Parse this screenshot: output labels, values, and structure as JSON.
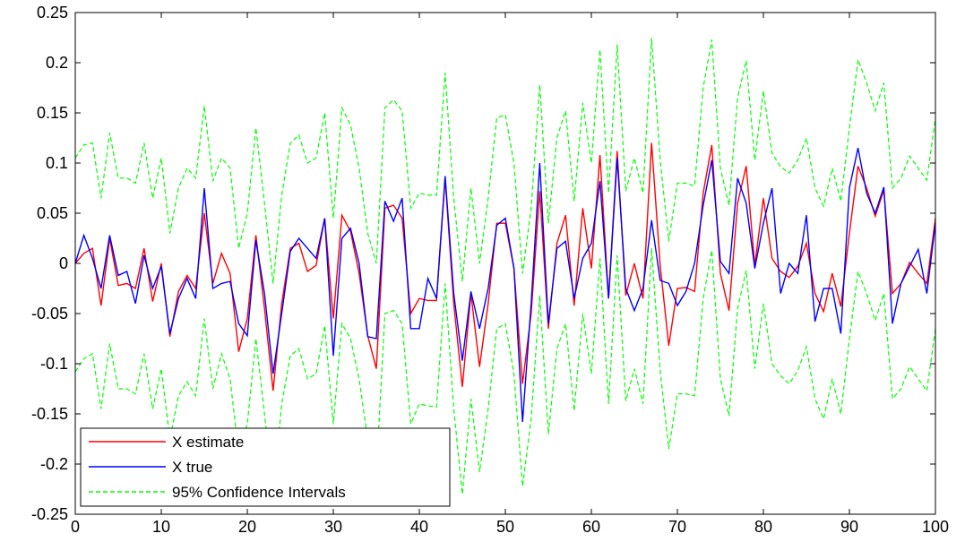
{
  "chart_data": {
    "type": "line",
    "title": "",
    "xlabel": "",
    "ylabel": "",
    "xlim": [
      0,
      100
    ],
    "ylim": [
      -0.25,
      0.25
    ],
    "x_ticks": [
      0,
      10,
      20,
      30,
      40,
      50,
      60,
      70,
      80,
      90,
      100
    ],
    "x_tick_labels": [
      "0",
      "10",
      "20",
      "30",
      "40",
      "50",
      "60",
      "70",
      "80",
      "90",
      "100"
    ],
    "y_ticks": [
      -0.25,
      -0.2,
      -0.15,
      -0.1,
      -0.05,
      0,
      0.05,
      0.1,
      0.15,
      0.2,
      0.25
    ],
    "y_tick_labels": [
      "-0.25",
      "-0.2",
      "-0.15",
      "-0.1",
      "-0.05",
      "0",
      "0.05",
      "0.1",
      "0.15",
      "0.2",
      "0.25"
    ],
    "grid": false,
    "legend_position": "bottom-left",
    "x": [
      0,
      1,
      2,
      3,
      4,
      5,
      6,
      7,
      8,
      9,
      10,
      11,
      12,
      13,
      14,
      15,
      16,
      17,
      18,
      19,
      20,
      21,
      22,
      23,
      24,
      25,
      26,
      27,
      28,
      29,
      30,
      31,
      32,
      33,
      34,
      35,
      36,
      37,
      38,
      39,
      40,
      41,
      42,
      43,
      44,
      45,
      46,
      47,
      48,
      49,
      50,
      51,
      52,
      53,
      54,
      55,
      56,
      57,
      58,
      59,
      60,
      61,
      62,
      63,
      64,
      65,
      66,
      67,
      68,
      69,
      70,
      71,
      72,
      73,
      74,
      75,
      76,
      77,
      78,
      79,
      80,
      81,
      82,
      83,
      84,
      85,
      86,
      87,
      88,
      89,
      90,
      91,
      92,
      93,
      94,
      95,
      96,
      97,
      98,
      99,
      100
    ],
    "series": [
      {
        "name": "X estimate",
        "color": "#ff0000",
        "style": "solid",
        "values": [
          0.0,
          0.01,
          0.015,
          -0.042,
          0.025,
          -0.022,
          -0.02,
          -0.025,
          0.015,
          -0.038,
          0.0,
          -0.073,
          -0.028,
          -0.012,
          -0.025,
          0.05,
          -0.02,
          0.01,
          -0.01,
          -0.088,
          -0.055,
          0.028,
          -0.045,
          -0.127,
          -0.04,
          0.015,
          0.02,
          -0.008,
          -0.002,
          0.045,
          -0.055,
          0.048,
          0.032,
          -0.01,
          -0.072,
          -0.105,
          0.055,
          0.058,
          0.045,
          -0.05,
          -0.035,
          -0.037,
          -0.037,
          0.085,
          -0.04,
          -0.123,
          -0.03,
          -0.103,
          -0.04,
          0.04,
          0.04,
          -0.005,
          -0.12,
          -0.05,
          0.072,
          -0.065,
          0.02,
          0.048,
          -0.042,
          0.055,
          -0.005,
          0.108,
          -0.035,
          0.112,
          -0.032,
          0.0,
          -0.035,
          0.12,
          -0.002,
          -0.082,
          -0.025,
          -0.024,
          -0.028,
          0.07,
          0.118,
          -0.01,
          -0.047,
          0.06,
          0.097,
          -0.002,
          0.065,
          0.005,
          -0.008,
          -0.014,
          -0.003,
          0.02,
          -0.03,
          -0.048,
          -0.01,
          -0.043,
          0.03,
          0.097,
          0.075,
          0.047,
          0.073,
          -0.03,
          -0.02,
          0.001,
          -0.01,
          -0.02,
          0.045
        ]
      },
      {
        "name": "X true",
        "color": "#0000ff",
        "style": "solid",
        "values": [
          0.0,
          0.028,
          0.005,
          -0.025,
          0.028,
          -0.012,
          -0.008,
          -0.04,
          0.008,
          -0.025,
          -0.003,
          -0.07,
          -0.035,
          -0.015,
          -0.035,
          0.075,
          -0.025,
          -0.02,
          -0.018,
          -0.06,
          -0.072,
          0.023,
          -0.03,
          -0.11,
          -0.05,
          0.012,
          0.025,
          0.015,
          0.005,
          0.045,
          -0.092,
          0.025,
          0.035,
          0.0,
          -0.073,
          -0.075,
          0.062,
          0.042,
          0.065,
          -0.065,
          -0.065,
          -0.015,
          -0.035,
          0.087,
          -0.03,
          -0.097,
          -0.028,
          -0.065,
          -0.025,
          0.038,
          0.045,
          -0.005,
          -0.158,
          -0.04,
          0.1,
          -0.06,
          0.015,
          0.022,
          -0.035,
          0.005,
          0.02,
          0.082,
          -0.035,
          0.105,
          -0.025,
          -0.047,
          -0.025,
          0.043,
          -0.017,
          -0.02,
          -0.042,
          -0.028,
          0.0,
          0.058,
          0.103,
          0.002,
          -0.01,
          0.085,
          0.06,
          -0.005,
          0.04,
          0.075,
          -0.03,
          0.0,
          -0.01,
          0.048,
          -0.058,
          -0.025,
          -0.025,
          -0.07,
          0.075,
          0.115,
          0.07,
          0.05,
          0.076,
          -0.06,
          -0.02,
          -0.003,
          0.014,
          -0.03,
          0.04
        ]
      },
      {
        "name": "95% Confidence Intervals",
        "color": "#00ff00",
        "style": "dashed",
        "upper": [
          0.105,
          0.118,
          0.12,
          0.065,
          0.13,
          0.085,
          0.085,
          0.08,
          0.12,
          0.065,
          0.105,
          0.03,
          0.075,
          0.095,
          0.085,
          0.157,
          0.082,
          0.105,
          0.095,
          0.015,
          0.05,
          0.135,
          0.06,
          -0.02,
          0.068,
          0.12,
          0.128,
          0.1,
          0.105,
          0.15,
          0.045,
          0.155,
          0.138,
          0.095,
          0.03,
          0.0,
          0.155,
          0.163,
          0.152,
          0.055,
          0.07,
          0.068,
          0.068,
          0.19,
          0.065,
          -0.018,
          0.075,
          0.0,
          0.065,
          0.145,
          0.148,
          0.1,
          -0.01,
          0.055,
          0.178,
          0.04,
          0.125,
          0.152,
          0.062,
          0.16,
          0.1,
          0.213,
          0.07,
          0.218,
          0.072,
          0.105,
          0.07,
          0.225,
          0.103,
          0.022,
          0.08,
          0.08,
          0.077,
          0.175,
          0.223,
          0.095,
          0.058,
          0.165,
          0.202,
          0.103,
          0.172,
          0.11,
          0.096,
          0.09,
          0.103,
          0.125,
          0.075,
          0.057,
          0.095,
          0.062,
          0.135,
          0.203,
          0.18,
          0.152,
          0.18,
          0.075,
          0.085,
          0.107,
          0.095,
          0.083,
          0.145
        ],
        "lower": [
          -0.108,
          -0.095,
          -0.09,
          -0.145,
          -0.08,
          -0.125,
          -0.125,
          -0.13,
          -0.09,
          -0.145,
          -0.105,
          -0.175,
          -0.132,
          -0.118,
          -0.132,
          -0.055,
          -0.125,
          -0.09,
          -0.115,
          -0.19,
          -0.16,
          -0.075,
          -0.15,
          -0.232,
          -0.14,
          -0.092,
          -0.085,
          -0.115,
          -0.11,
          -0.062,
          -0.16,
          -0.06,
          -0.075,
          -0.115,
          -0.175,
          -0.208,
          -0.05,
          -0.047,
          -0.06,
          -0.16,
          -0.14,
          -0.142,
          -0.143,
          -0.02,
          -0.145,
          -0.23,
          -0.135,
          -0.208,
          -0.145,
          -0.065,
          -0.06,
          -0.11,
          -0.222,
          -0.155,
          -0.032,
          -0.17,
          -0.085,
          -0.06,
          -0.147,
          -0.05,
          -0.11,
          0.005,
          -0.14,
          0.008,
          -0.137,
          -0.105,
          -0.14,
          0.015,
          -0.107,
          -0.185,
          -0.13,
          -0.13,
          -0.132,
          -0.035,
          0.013,
          -0.115,
          -0.152,
          -0.045,
          -0.007,
          -0.105,
          -0.04,
          -0.1,
          -0.112,
          -0.12,
          -0.107,
          -0.083,
          -0.135,
          -0.155,
          -0.115,
          -0.15,
          -0.075,
          -0.008,
          -0.03,
          -0.057,
          -0.03,
          -0.135,
          -0.125,
          -0.103,
          -0.115,
          -0.127,
          -0.065
        ]
      }
    ]
  }
}
